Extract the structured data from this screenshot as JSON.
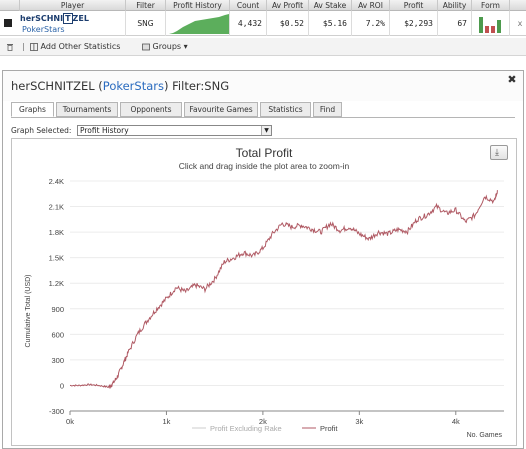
{
  "player_table": {
    "headers": [
      "Player",
      "Filter",
      "Profit History",
      "Count",
      "Av Profit",
      "Av Stake",
      "Av ROI",
      "Profit",
      "Ability",
      "Form"
    ],
    "row": {
      "player_prefix": "herSCHNI",
      "player_boxed": "T",
      "player_suffix": "ZEL",
      "site": "PokerStars",
      "filter": "SNG",
      "count": "4,432",
      "av_profit": "$0.52",
      "av_stake": "$5.16",
      "av_roi": "7.2%",
      "profit": "$2,293",
      "ability": "67",
      "close": "x"
    }
  },
  "toolbar": {
    "add_label": "Add Other Statistics",
    "groups_label": "Groups",
    "groups_arrow": "▾"
  },
  "panel": {
    "title_player": "herSCHNITZEL",
    "title_paren_open": " (",
    "title_site": "PokerStars",
    "title_paren_close": ")",
    "title_filter": " Filter:SNG",
    "close": "✖",
    "tabs": [
      "Graphs",
      "Tournaments",
      "Opponents",
      "Favourite Games",
      "Statistics",
      "Find"
    ],
    "graph_selected_label": "Graph Selected:",
    "graph_selected_value": "Profit History",
    "download_icon": "download-icon"
  },
  "colors": {
    "profit_line": "#b05a64",
    "rake_line": "#cccccc",
    "spark_fill": "#5cae5c",
    "link": "#2a6bbf"
  },
  "chart_data": {
    "type": "line",
    "title": "Total Profit",
    "subtitle": "Click and drag inside the plot area to zoom-in",
    "ylabel": "Cumulative Total (USD)",
    "xlabel": "No. Games",
    "ylim": [
      -300,
      2400
    ],
    "xlim": [
      0,
      4500
    ],
    "yticks": [
      "-300",
      "0",
      "300",
      "600",
      "900",
      "1.2K",
      "1.5K",
      "1.8K",
      "2.1K",
      "2.4K"
    ],
    "ytick_values": [
      -300,
      0,
      300,
      600,
      900,
      1200,
      1500,
      1800,
      2100,
      2400
    ],
    "xticks": [
      "0k",
      "1k",
      "2k",
      "3k",
      "4k"
    ],
    "xtick_values": [
      0,
      1000,
      2000,
      3000,
      4000
    ],
    "grid": true,
    "legend": "bottom-center",
    "series": [
      {
        "name": "Profit Excluding Rake",
        "x": [],
        "values": []
      },
      {
        "name": "Profit",
        "x": [
          0,
          100,
          200,
          300,
          400,
          450,
          500,
          550,
          600,
          700,
          800,
          900,
          1000,
          1100,
          1200,
          1300,
          1400,
          1500,
          1600,
          1700,
          1800,
          1900,
          2000,
          2100,
          2200,
          2300,
          2400,
          2500,
          2600,
          2700,
          2800,
          2900,
          3000,
          3100,
          3200,
          3300,
          3400,
          3500,
          3600,
          3700,
          3800,
          3900,
          4000,
          4100,
          4200,
          4300,
          4400,
          4432
        ],
        "values": [
          0,
          0,
          10,
          0,
          -20,
          30,
          120,
          250,
          380,
          600,
          760,
          900,
          1020,
          1150,
          1100,
          1180,
          1130,
          1250,
          1450,
          1500,
          1560,
          1520,
          1610,
          1780,
          1900,
          1860,
          1880,
          1840,
          1800,
          1900,
          1820,
          1860,
          1780,
          1720,
          1800,
          1780,
          1830,
          1810,
          1950,
          2000,
          2100,
          2020,
          2060,
          1920,
          2000,
          2220,
          2160,
          2293
        ]
      }
    ]
  }
}
